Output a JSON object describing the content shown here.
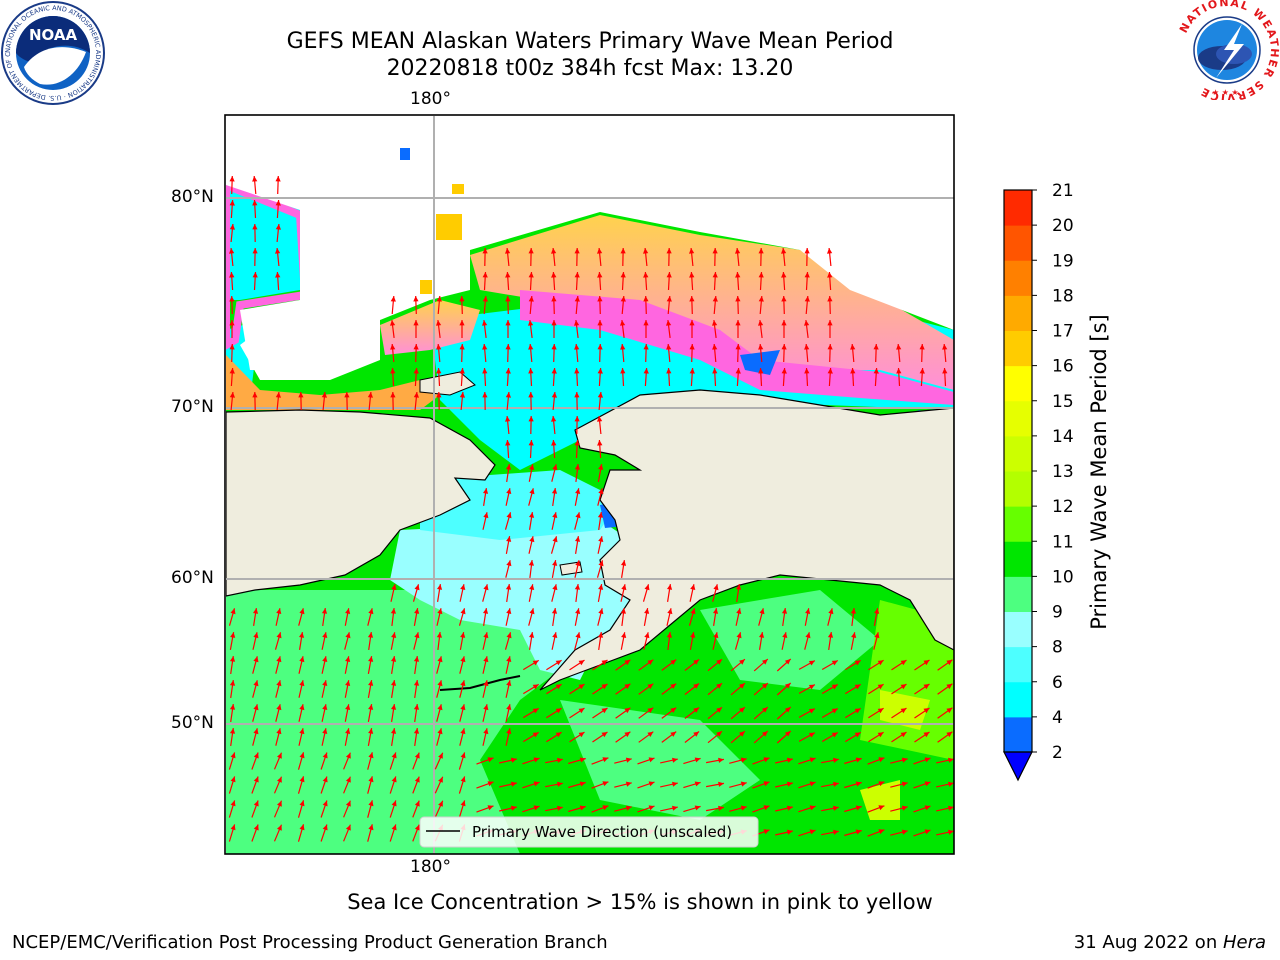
{
  "header": {
    "title_line1": "GEFS MEAN Alaskan Waters Primary Wave Mean Period",
    "title_line2": "20220818 t00z 384h fcst   Max: 13.20"
  },
  "logos": {
    "noaa_text": "NOAA",
    "noaa_ring_text": "NATIONAL OCEANIC AND ATMOSPHERIC ADMINISTRATION · U.S. DEPARTMENT OF COMMERCE",
    "nws_ring_text": "NATIONAL WEATHER SERVICE"
  },
  "map": {
    "lon_label_top": "180°",
    "lon_label_bottom": "180°",
    "lat_labels": [
      "80°N",
      "70°N",
      "60°N",
      "50°N"
    ],
    "legend_label": "Primary Wave Direction (unscaled)",
    "colors": {
      "land": "#efedde",
      "ice_white": "#ffffff",
      "arrow": "#ff0000",
      "grid": "#b0b0b0"
    }
  },
  "colorbar": {
    "label": "Primary Wave Mean Period [s]",
    "ticks": [
      "2",
      "4",
      "6",
      "8",
      "9",
      "10",
      "11",
      "12",
      "13",
      "14",
      "15",
      "16",
      "17",
      "18",
      "19",
      "20",
      "21"
    ],
    "colors": [
      "#0a6cff",
      "#00ffff",
      "#4dffff",
      "#99ffff",
      "#4dff80",
      "#00e600",
      "#66ff00",
      "#b3ff00",
      "#ccff00",
      "#e6ff00",
      "#ffff00",
      "#ffcc00",
      "#ffaa00",
      "#ff8000",
      "#ff5500",
      "#ff2a00"
    ],
    "underflow_color": "#0000ff",
    "overflow_color": "#ff0000"
  },
  "caption": "Sea Ice Concentration > 15% is shown in pink to yellow",
  "footer": {
    "left": "NCEP/EMC/Verification Post Processing Product Generation Branch",
    "right_prefix": "31 Aug 2022 on ",
    "right_host": "Hera"
  }
}
